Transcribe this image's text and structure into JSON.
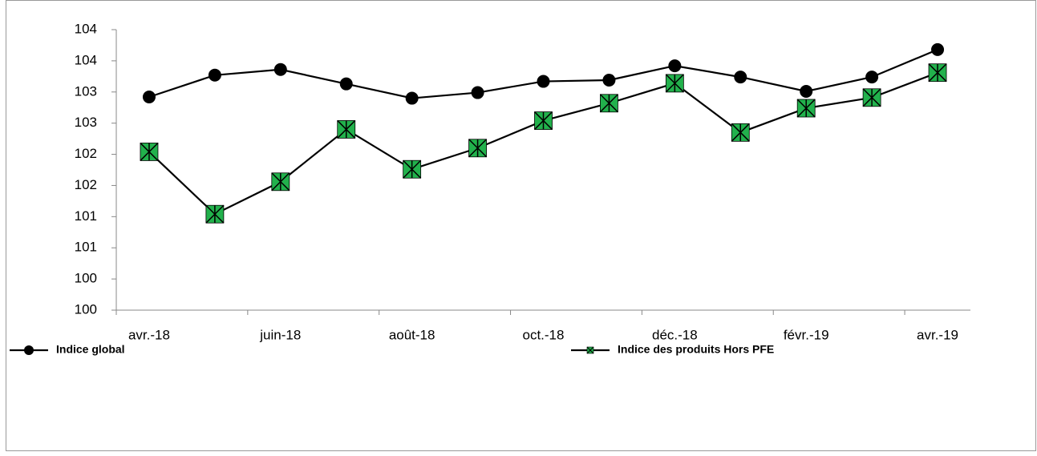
{
  "chart_data": {
    "type": "line",
    "categories": [
      "avr.-18",
      null,
      "juin-18",
      null,
      "août-18",
      null,
      "oct.-18",
      null,
      "déc.-18",
      null,
      "févr.-19",
      null,
      "avr.-19"
    ],
    "series": [
      {
        "name": "Indice global",
        "color": "#000000",
        "marker": "circle",
        "values": [
          103.42,
          103.77,
          103.86,
          103.63,
          103.4,
          103.49,
          103.67,
          103.69,
          103.92,
          103.74,
          103.51,
          103.74,
          104.18
        ]
      },
      {
        "name": "Indice des produits Hors PFE",
        "color": "#000000",
        "marker_color": "#22b14c",
        "marker": "square-x",
        "values": [
          102.54,
          101.54,
          102.06,
          102.9,
          102.26,
          102.6,
          103.04,
          103.32,
          103.64,
          102.85,
          103.24,
          103.41,
          103.81
        ]
      }
    ],
    "ylim": [
      100,
      104.5
    ],
    "yticks": [
      100,
      {
        "value": 100.5,
        "label": "100"
      },
      101,
      {
        "value": 101.5,
        "label": "101"
      },
      102,
      {
        "value": 102.5,
        "label": "102"
      },
      103,
      {
        "value": 103.5,
        "label": "103"
      },
      104,
      {
        "value": 104.5,
        "label": "104"
      }
    ],
    "grid": false,
    "legend": "bottom"
  }
}
